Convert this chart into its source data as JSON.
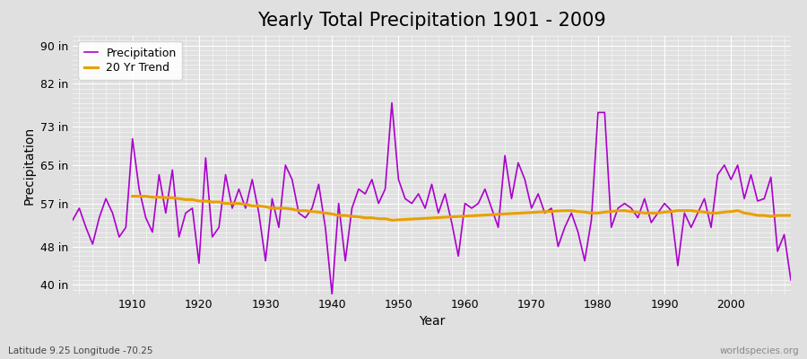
{
  "title": "Yearly Total Precipitation 1901 - 2009",
  "xlabel": "Year",
  "ylabel": "Precipitation",
  "subtitle": "Latitude 9.25 Longitude -70.25",
  "watermark": "worldspecies.org",
  "years": [
    1901,
    1902,
    1903,
    1904,
    1905,
    1906,
    1907,
    1908,
    1909,
    1910,
    1911,
    1912,
    1913,
    1914,
    1915,
    1916,
    1917,
    1918,
    1919,
    1920,
    1921,
    1922,
    1923,
    1924,
    1925,
    1926,
    1927,
    1928,
    1929,
    1930,
    1931,
    1932,
    1933,
    1934,
    1935,
    1936,
    1937,
    1938,
    1939,
    1940,
    1941,
    1942,
    1943,
    1944,
    1945,
    1946,
    1947,
    1948,
    1949,
    1950,
    1951,
    1952,
    1953,
    1954,
    1955,
    1956,
    1957,
    1958,
    1959,
    1960,
    1961,
    1962,
    1963,
    1964,
    1965,
    1966,
    1967,
    1968,
    1969,
    1970,
    1971,
    1972,
    1973,
    1974,
    1975,
    1976,
    1977,
    1978,
    1979,
    1980,
    1981,
    1982,
    1983,
    1984,
    1985,
    1986,
    1987,
    1988,
    1989,
    1990,
    1991,
    1992,
    1993,
    1994,
    1995,
    1996,
    1997,
    1998,
    1999,
    2000,
    2001,
    2002,
    2003,
    2004,
    2005,
    2006,
    2007,
    2008,
    2009
  ],
  "precipitation": [
    53.5,
    56.0,
    52.0,
    48.5,
    54.0,
    58.0,
    55.0,
    50.0,
    52.0,
    70.5,
    60.0,
    54.0,
    51.0,
    63.0,
    55.0,
    64.0,
    50.0,
    55.0,
    56.0,
    44.5,
    66.5,
    50.0,
    52.0,
    63.0,
    56.0,
    60.0,
    56.0,
    62.0,
    55.0,
    45.0,
    58.0,
    52.0,
    65.0,
    62.0,
    55.0,
    54.0,
    56.0,
    61.0,
    52.0,
    38.0,
    57.0,
    45.0,
    56.0,
    60.0,
    59.0,
    62.0,
    57.0,
    60.0,
    78.0,
    62.0,
    58.0,
    57.0,
    59.0,
    56.0,
    61.0,
    55.0,
    59.0,
    53.0,
    46.0,
    57.0,
    56.0,
    57.0,
    60.0,
    56.0,
    52.0,
    67.0,
    58.0,
    65.5,
    62.0,
    56.0,
    59.0,
    55.0,
    56.0,
    48.0,
    52.0,
    55.0,
    51.0,
    45.0,
    53.5,
    76.0,
    76.0,
    52.0,
    56.0,
    57.0,
    56.0,
    54.0,
    58.0,
    53.0,
    55.0,
    57.0,
    55.5,
    44.0,
    55.0,
    52.0,
    55.0,
    58.0,
    52.0,
    63.0,
    65.0,
    62.0,
    65.0,
    58.0,
    63.0,
    57.5,
    58.0,
    62.5,
    47.0,
    50.5,
    41.0
  ],
  "trend_years": [
    1910,
    1911,
    1912,
    1913,
    1914,
    1915,
    1916,
    1917,
    1918,
    1919,
    1920,
    1921,
    1922,
    1923,
    1924,
    1925,
    1926,
    1927,
    1928,
    1929,
    1930,
    1931,
    1932,
    1933,
    1934,
    1935,
    1936,
    1937,
    1938,
    1939,
    1940,
    1941,
    1942,
    1943,
    1944,
    1945,
    1946,
    1947,
    1948,
    1949,
    1975,
    1976,
    1977,
    1978,
    1979,
    1980,
    1981,
    1982,
    1983,
    1984,
    1985,
    1986,
    1987,
    1988,
    1989,
    1990,
    1991,
    1992,
    1993,
    1994,
    1995,
    1996,
    1997,
    1998,
    1999,
    2000,
    2001,
    2002,
    2003,
    2004,
    2005,
    2006,
    2007,
    2008,
    2009
  ],
  "trend_values": [
    58.5,
    58.5,
    58.5,
    58.3,
    58.3,
    58.2,
    58.2,
    58.0,
    57.8,
    57.8,
    57.5,
    57.5,
    57.3,
    57.3,
    57.0,
    57.0,
    57.0,
    56.8,
    56.5,
    56.5,
    56.3,
    56.0,
    56.0,
    56.0,
    55.8,
    55.5,
    55.5,
    55.3,
    55.2,
    55.0,
    54.8,
    54.5,
    54.5,
    54.3,
    54.2,
    54.0,
    54.0,
    53.8,
    53.8,
    53.5,
    55.5,
    55.5,
    55.3,
    55.2,
    55.0,
    55.0,
    55.2,
    55.3,
    55.5,
    55.5,
    55.3,
    55.2,
    55.0,
    55.0,
    55.0,
    55.2,
    55.3,
    55.5,
    55.5,
    55.5,
    55.3,
    55.2,
    55.0,
    55.0,
    55.2,
    55.3,
    55.5,
    55.0,
    54.8,
    54.5,
    54.5,
    54.3,
    54.5,
    54.5,
    54.5
  ],
  "precip_color": "#AA00CC",
  "trend_color": "#E8A000",
  "bg_color": "#E0E0E0",
  "ylim": [
    38,
    92
  ],
  "yticks": [
    40,
    48,
    57,
    65,
    73,
    82,
    90
  ],
  "ytick_labels": [
    "40 in",
    "48 in",
    "57 in",
    "65 in",
    "73 in",
    "82 in",
    "90 in"
  ],
  "xticks": [
    1910,
    1920,
    1930,
    1940,
    1950,
    1960,
    1970,
    1980,
    1990,
    2000
  ],
  "title_fontsize": 15,
  "axis_fontsize": 10,
  "tick_fontsize": 9,
  "legend_fontsize": 9
}
